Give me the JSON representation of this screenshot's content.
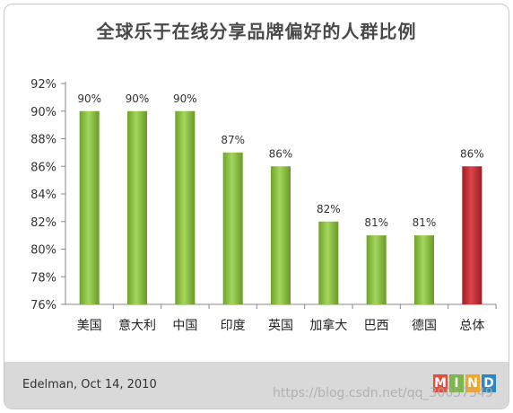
{
  "chart_data": {
    "type": "bar",
    "title": "全球乐于在线分享品牌偏好的人群比例",
    "categories": [
      "美国",
      "意大利",
      "中国",
      "印度",
      "英国",
      "加拿大",
      "巴西",
      "德国",
      "总体"
    ],
    "values": [
      90,
      90,
      90,
      87,
      86,
      82,
      81,
      81,
      86
    ],
    "value_labels": [
      "90%",
      "90%",
      "90%",
      "87%",
      "86%",
      "82%",
      "81%",
      "81%",
      "86%"
    ],
    "yticks": [
      "92%",
      "90%",
      "88%",
      "86%",
      "84%",
      "82%",
      "80%",
      "78%",
      "76%"
    ],
    "ytick_values": [
      92,
      90,
      88,
      86,
      84,
      82,
      80,
      78,
      76
    ],
    "ylim": [
      76,
      92
    ],
    "xlabel": "",
    "ylabel": "",
    "grid": false,
    "legend": "none",
    "colors": {
      "default": "#8cc63f",
      "highlight": "#c0282d",
      "highlight_category": "总体"
    }
  },
  "footer": {
    "source": "Edelman, Oct 14, 2010",
    "logo_letters": [
      "M",
      "I",
      "N",
      "D"
    ],
    "logo_colors": [
      "#e84c3d",
      "#7ab648",
      "#f5a623",
      "#2e86c1"
    ]
  },
  "watermark": "https://blog.csdn.net/qq_30057549"
}
